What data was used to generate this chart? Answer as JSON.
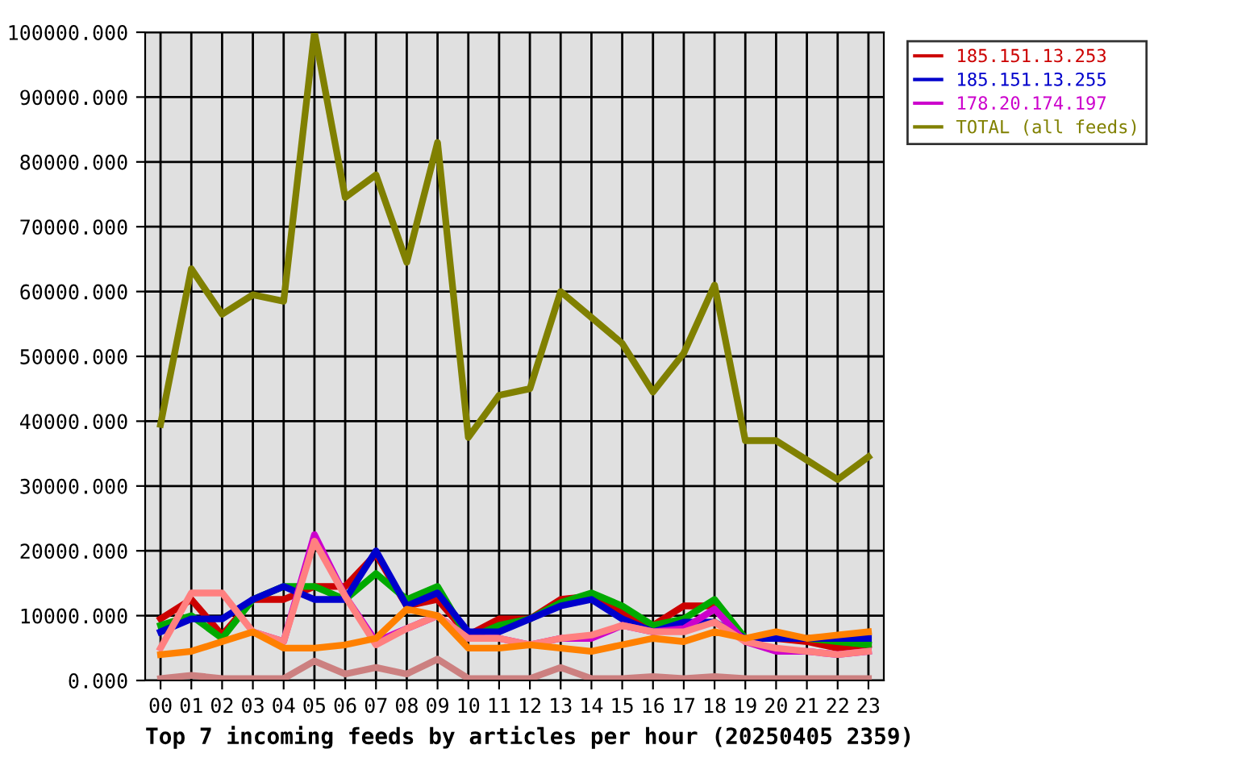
{
  "chart_data": {
    "type": "line",
    "xlabel": "Top 7 incoming feeds by articles per hour (20250405 2359)",
    "categories": [
      "00",
      "01",
      "02",
      "03",
      "04",
      "05",
      "06",
      "07",
      "08",
      "09",
      "10",
      "11",
      "12",
      "13",
      "14",
      "15",
      "16",
      "17",
      "18",
      "19",
      "20",
      "21",
      "22",
      "23"
    ],
    "series": [
      {
        "name": "185.151.13.253",
        "color": "#cc0000",
        "values": [
          9500,
          12500,
          7000,
          12500,
          12500,
          14500,
          14500,
          19500,
          11500,
          12500,
          7000,
          9500,
          9500,
          12500,
          13000,
          10500,
          8500,
          11500,
          11500,
          6500,
          6500,
          6000,
          5000,
          5500
        ]
      },
      {
        "color": "#00aa00",
        "values": [
          8500,
          10000,
          6500,
          12500,
          14500,
          14500,
          12500,
          16500,
          12500,
          14500,
          6500,
          8500,
          9500,
          12000,
          13500,
          11500,
          8500,
          9500,
          12500,
          6500,
          6500,
          6500,
          6000,
          5500
        ]
      },
      {
        "name": "185.151.13.255",
        "color": "#0000cc",
        "values": [
          7500,
          9500,
          9500,
          12500,
          14500,
          12500,
          12500,
          20000,
          11500,
          13500,
          7500,
          7500,
          9500,
          11500,
          12500,
          9500,
          7500,
          9000,
          9000,
          6500,
          6500,
          6500,
          6500,
          6500
        ]
      },
      {
        "name": "178.20.174.197",
        "color": "#cc00cc",
        "values": [
          null,
          null,
          null,
          7500,
          6000,
          22500,
          13000,
          6000,
          8000,
          10000,
          6500,
          6500,
          5500,
          6500,
          6500,
          8500,
          7500,
          8000,
          11000,
          6000,
          4500,
          4500,
          4000,
          4500
        ]
      },
      {
        "color": "#ff8080",
        "values": [
          5000,
          13500,
          13500,
          7500,
          6000,
          21500,
          13000,
          5500,
          8000,
          10000,
          6500,
          6500,
          5500,
          6500,
          7000,
          8500,
          7500,
          7500,
          9000,
          6000,
          5000,
          4500,
          4000,
          4500
        ]
      },
      {
        "color": "#ff8000",
        "values": [
          4000,
          4500,
          6000,
          7500,
          5000,
          5000,
          5500,
          6500,
          11000,
          10000,
          5000,
          5000,
          5500,
          5000,
          4500,
          5500,
          6500,
          6000,
          7500,
          6500,
          7500,
          6500,
          7000,
          7500
        ]
      },
      {
        "color": "#cc8080",
        "values": [
          300,
          800,
          300,
          300,
          300,
          3000,
          1000,
          2000,
          1000,
          3300,
          300,
          300,
          300,
          2000,
          300,
          300,
          600,
          300,
          600,
          300,
          300,
          300,
          300,
          300
        ]
      },
      {
        "name": "TOTAL (all feeds)",
        "color": "#808000",
        "values": [
          39500,
          63500,
          56500,
          59500,
          58500,
          100000,
          74500,
          78000,
          64500,
          83000,
          37500,
          44000,
          45000,
          60000,
          56000,
          52000,
          44500,
          50500,
          61000,
          37000,
          37000,
          34000,
          31000,
          34500
        ]
      }
    ],
    "ylim": [
      0,
      100000
    ],
    "yticks": [
      {
        "value": 0,
        "label": "0.000"
      },
      {
        "value": 10000,
        "label": "10000.000"
      },
      {
        "value": 20000,
        "label": "20000.000"
      },
      {
        "value": 30000,
        "label": "30000.000"
      },
      {
        "value": 40000,
        "label": "40000.000"
      },
      {
        "value": 50000,
        "label": "50000.000"
      },
      {
        "value": 60000,
        "label": "60000.000"
      },
      {
        "value": 70000,
        "label": "70000.000"
      },
      {
        "value": 80000,
        "label": "80000.000"
      },
      {
        "value": 90000,
        "label": "90000.000"
      },
      {
        "value": 100000,
        "label": "100000.000"
      }
    ],
    "grid": true,
    "legend": "top right",
    "line_style": "solid"
  }
}
